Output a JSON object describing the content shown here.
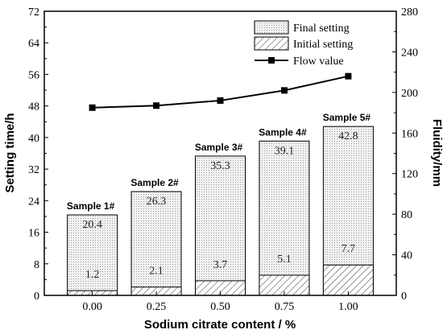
{
  "chart_data": {
    "type": "bar",
    "xlabel": "Sodium citrate content / %",
    "ylabel_left": "Setting time/h",
    "ylabel_right": "Fluidity/mm",
    "categories": [
      "0.00",
      "0.25",
      "0.50",
      "0.75",
      "1.00"
    ],
    "sample_labels": [
      "Sample 1#",
      "Sample 2#",
      "Sample 3#",
      "Sample 4#",
      "Sample 5#"
    ],
    "ylim_left": [
      0,
      72
    ],
    "yticks_left": [
      "0",
      "8",
      "16",
      "24",
      "32",
      "40",
      "48",
      "56",
      "64",
      "72"
    ],
    "ylim_right": [
      0,
      280
    ],
    "yticks_right": [
      "0",
      "40",
      "80",
      "120",
      "160",
      "200",
      "240",
      "280"
    ],
    "series": [
      {
        "name": "Final setting",
        "axis": "left",
        "style": "dotted",
        "values": [
          20.4,
          26.3,
          35.3,
          39.1,
          42.8
        ],
        "labels": [
          "20.4",
          "26.3",
          "35.3",
          "39.1",
          "42.8"
        ]
      },
      {
        "name": "Initial setting",
        "axis": "left",
        "style": "hatched",
        "values": [
          1.2,
          2.1,
          3.7,
          5.1,
          7.7
        ],
        "labels": [
          "1.2",
          "2.1",
          "3.7",
          "5.1",
          "7.7"
        ]
      },
      {
        "name": "Flow value",
        "axis": "right",
        "style": "line-square",
        "values": [
          185,
          187,
          192,
          202,
          216
        ]
      }
    ],
    "legend": {
      "position": "top-right"
    },
    "grid": false,
    "colors": {
      "line": "#000000",
      "bar_fill": "#f0f0f0",
      "bar_dots": "#9a9a9a",
      "hatch": "#555555"
    }
  }
}
